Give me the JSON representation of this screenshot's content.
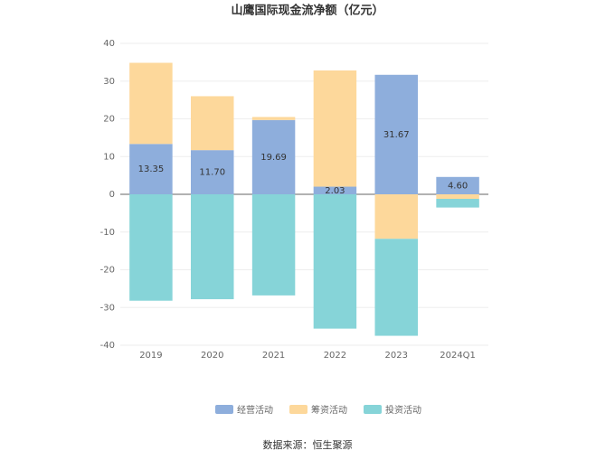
{
  "chart_data": {
    "type": "bar",
    "stacked": true,
    "title": "山鹰国际现金流净额（亿元）",
    "categories": [
      "2019",
      "2020",
      "2021",
      "2022",
      "2023",
      "2024Q1"
    ],
    "series": [
      {
        "name": "经营活动",
        "color": "#8eaedc",
        "values": [
          13.35,
          11.7,
          19.69,
          2.03,
          31.67,
          4.6
        ],
        "value_labels": [
          "13.35",
          "11.70",
          "19.69",
          "2.03",
          "31.67",
          "4.60"
        ]
      },
      {
        "name": "筹资活动",
        "color": "#fdd89b",
        "values": [
          21.5,
          14.3,
          0.8,
          30.8,
          -11.8,
          -1.2
        ]
      },
      {
        "name": "投资活动",
        "color": "#86d4d8",
        "values": [
          -28.2,
          -27.8,
          -26.8,
          -35.6,
          -25.7,
          -2.3
        ]
      }
    ],
    "ylim": [
      -40,
      40
    ],
    "yticks": [
      -40,
      -30,
      -20,
      -10,
      0,
      10,
      20,
      30,
      40
    ],
    "grid": true,
    "source": "数据来源：恒生聚源"
  }
}
